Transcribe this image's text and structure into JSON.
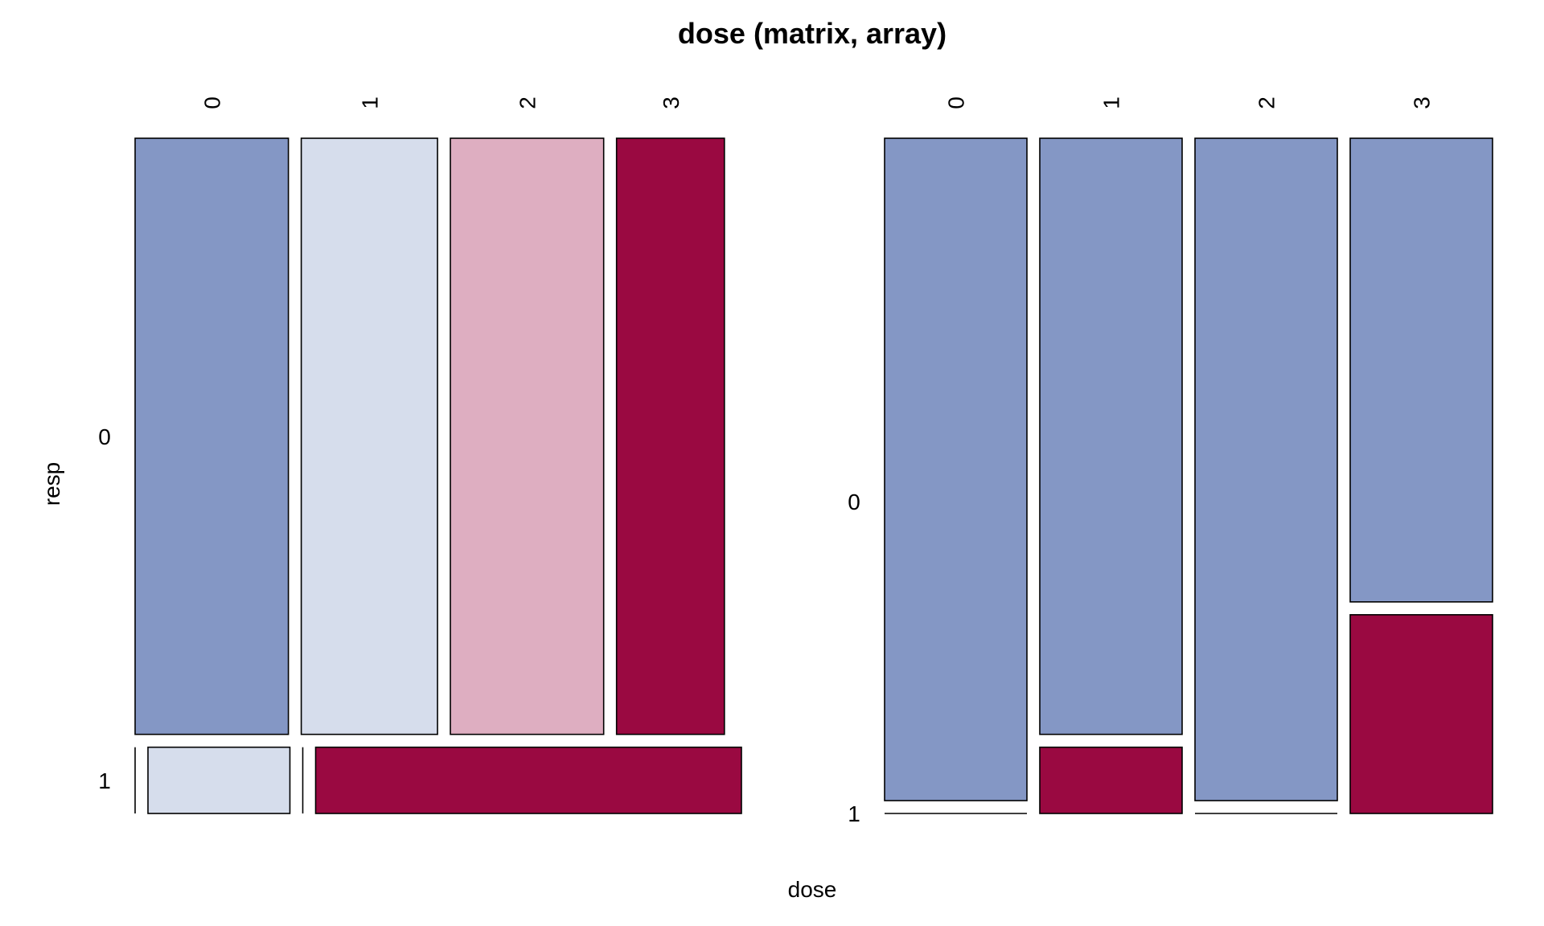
{
  "chart_data": {
    "type": "mosaic",
    "title": "dose (matrix, array)",
    "xlabel": "dose",
    "ylabel": "resp",
    "colors": {
      "strong_negative": "#8497C5",
      "weak_negative": "#D6DDEC",
      "weak_positive": "#DEAEC1",
      "strong_positive": "#9A0941"
    },
    "panels": [
      {
        "id": "left",
        "layout": "split_resp_then_dose",
        "row_var": "resp",
        "col_var": "dose",
        "row_levels": [
          "0",
          "1"
        ],
        "col_levels": [
          "0",
          "1",
          "2",
          "3"
        ],
        "row_proportions": [
          0.9,
          0.1
        ],
        "cells": [
          {
            "resp": "0",
            "dose": "0",
            "proportion": 0.27,
            "fill": "strong_negative"
          },
          {
            "resp": "0",
            "dose": "1",
            "proportion": 0.24,
            "fill": "weak_negative"
          },
          {
            "resp": "0",
            "dose": "2",
            "proportion": 0.27,
            "fill": "weak_positive"
          },
          {
            "resp": "0",
            "dose": "3",
            "proportion": 0.19,
            "fill": "strong_positive"
          },
          {
            "resp": "1",
            "dose": "0",
            "proportion": 0.0,
            "fill": "weak_negative"
          },
          {
            "resp": "1",
            "dose": "1",
            "proportion": 0.25,
            "fill": "weak_negative"
          },
          {
            "resp": "1",
            "dose": "2",
            "proportion": 0.0,
            "fill": "strong_positive"
          },
          {
            "resp": "1",
            "dose": "3",
            "proportion": 0.75,
            "fill": "strong_positive"
          }
        ]
      },
      {
        "id": "right",
        "layout": "split_dose_then_resp",
        "row_var": "resp",
        "col_var": "dose",
        "row_levels": [
          "0",
          "1"
        ],
        "col_levels": [
          "0",
          "1",
          "2",
          "3"
        ],
        "col_proportions": [
          0.25,
          0.25,
          0.25,
          0.25
        ],
        "cells": [
          {
            "resp": "0",
            "dose": "0",
            "proportion": 1.0,
            "fill": "strong_negative"
          },
          {
            "resp": "1",
            "dose": "0",
            "proportion": 0.0,
            "fill": "strong_negative"
          },
          {
            "resp": "0",
            "dose": "1",
            "proportion": 0.9,
            "fill": "strong_negative"
          },
          {
            "resp": "1",
            "dose": "1",
            "proportion": 0.1,
            "fill": "strong_positive"
          },
          {
            "resp": "0",
            "dose": "2",
            "proportion": 1.0,
            "fill": "strong_negative"
          },
          {
            "resp": "1",
            "dose": "2",
            "proportion": 0.0,
            "fill": "strong_negative"
          },
          {
            "resp": "0",
            "dose": "3",
            "proportion": 0.7,
            "fill": "strong_negative"
          },
          {
            "resp": "1",
            "dose": "3",
            "proportion": 0.3,
            "fill": "strong_positive"
          }
        ]
      }
    ]
  }
}
